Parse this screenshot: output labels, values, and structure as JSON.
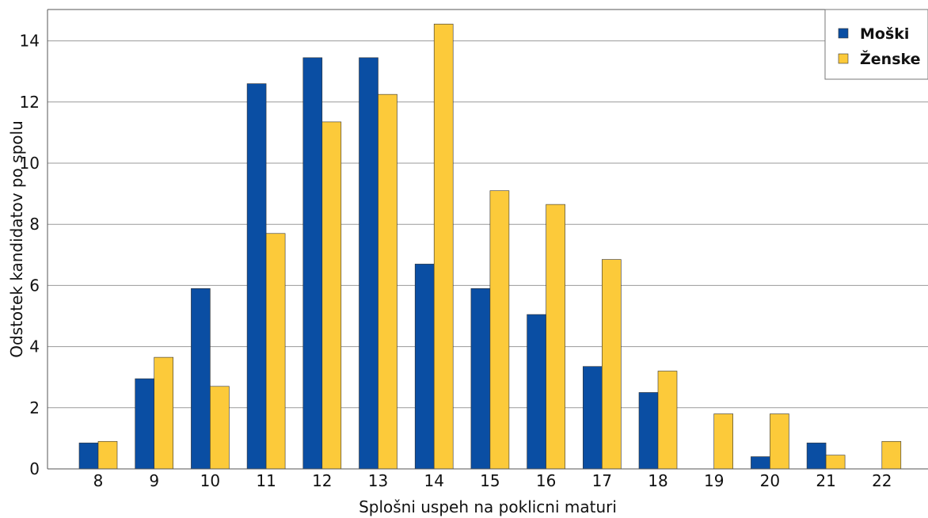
{
  "chart_data": {
    "type": "bar",
    "xlabel": "Splošni uspeh na poklicni maturi",
    "ylabel": "Odstotek kandidatov po spolu",
    "categories": [
      "8",
      "9",
      "10",
      "11",
      "12",
      "13",
      "14",
      "15",
      "16",
      "17",
      "18",
      "19",
      "20",
      "21",
      "22"
    ],
    "ylim": [
      0,
      15
    ],
    "yticks": [
      "0",
      "2",
      "4",
      "6",
      "8",
      "10",
      "12",
      "14"
    ],
    "grid": "horizontal",
    "legend_position": "top-right",
    "series": [
      {
        "name": "Moški",
        "color": "#0a4ea3",
        "values": [
          0.85,
          2.95,
          5.9,
          12.6,
          13.45,
          13.45,
          6.7,
          5.9,
          5.05,
          3.35,
          2.5,
          0,
          0.4,
          0.85,
          0
        ]
      },
      {
        "name": "Ženske",
        "color": "#fcca3a",
        "values": [
          0.9,
          3.65,
          2.7,
          7.7,
          11.35,
          12.25,
          14.55,
          9.1,
          8.65,
          6.85,
          3.2,
          1.8,
          1.8,
          0.45,
          0.9
        ]
      }
    ]
  }
}
